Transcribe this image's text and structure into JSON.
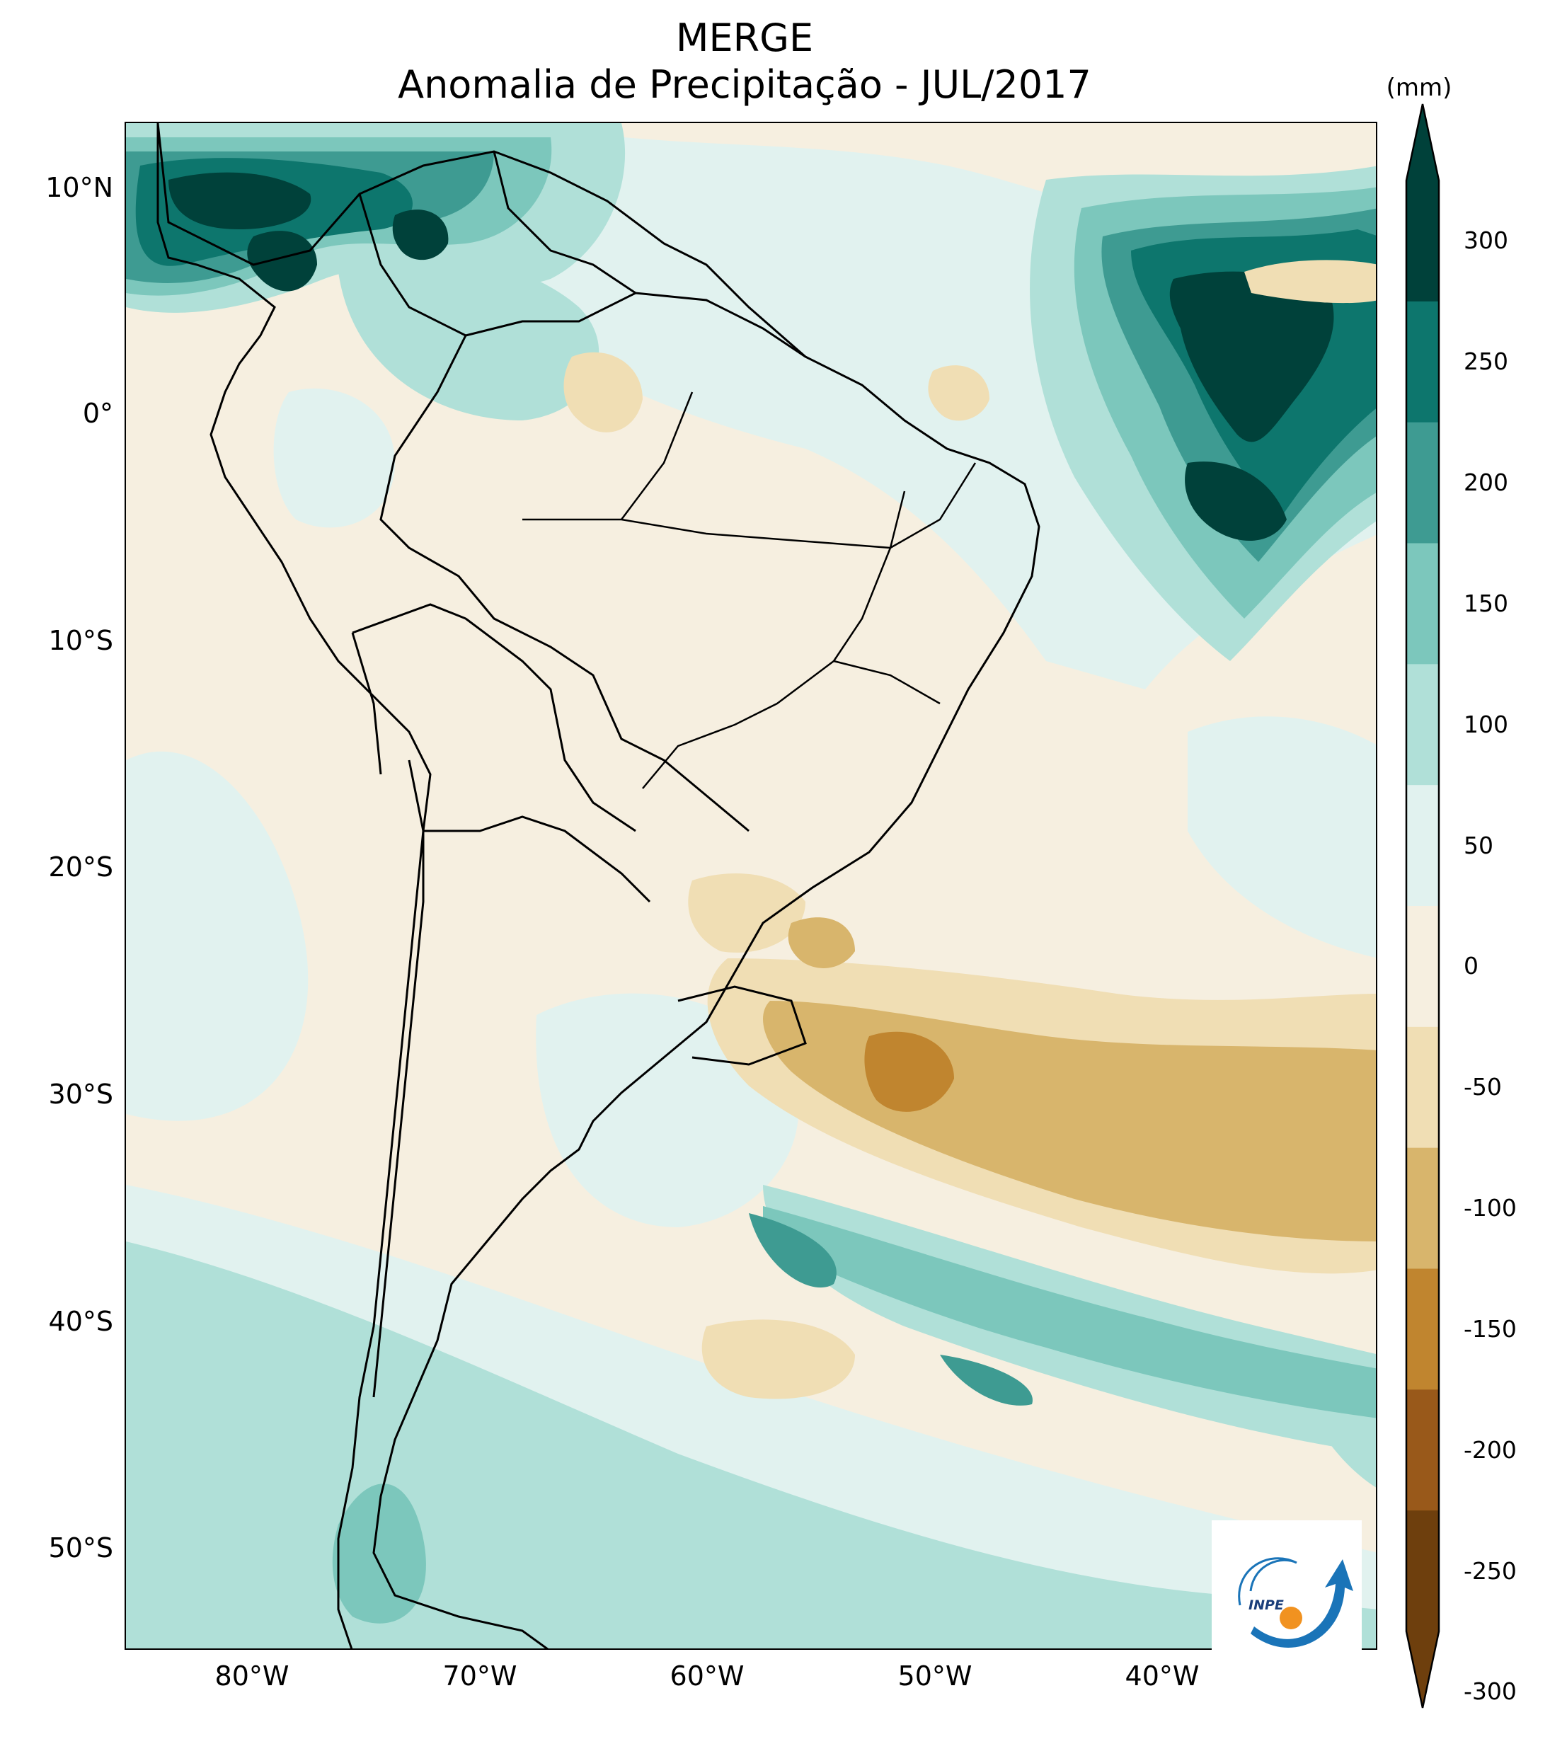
{
  "title": "MERGE",
  "subtitle": "Anomalia de Precipitação - JUL/2017",
  "colorbar": {
    "unit": "(mm)",
    "ticks": [
      "300",
      "250",
      "200",
      "150",
      "100",
      "50",
      "0",
      "-50",
      "-100",
      "-150",
      "-200",
      "-250",
      "-300"
    ],
    "colors": [
      "#00413a",
      "#0d766d",
      "#3e9b92",
      "#7cc7bc",
      "#b0e0d8",
      "#e1f2ef",
      "#f6efe0",
      "#f0deb4",
      "#d8b56c",
      "#c0852f",
      "#99591a",
      "#6e3f0d"
    ],
    "extend": "both"
  },
  "axes": {
    "lat_labels": [
      "10°N",
      "0°",
      "10°S",
      "20°S",
      "30°S",
      "40°S",
      "50°S"
    ],
    "lon_labels": [
      "80°W",
      "70°W",
      "60°W",
      "50°W",
      "40°W"
    ],
    "lon_range": [
      -85,
      -30
    ],
    "lat_range": [
      -56,
      13
    ]
  },
  "logo": {
    "text": "INPE",
    "icon": "inpe-logo-icon"
  }
}
